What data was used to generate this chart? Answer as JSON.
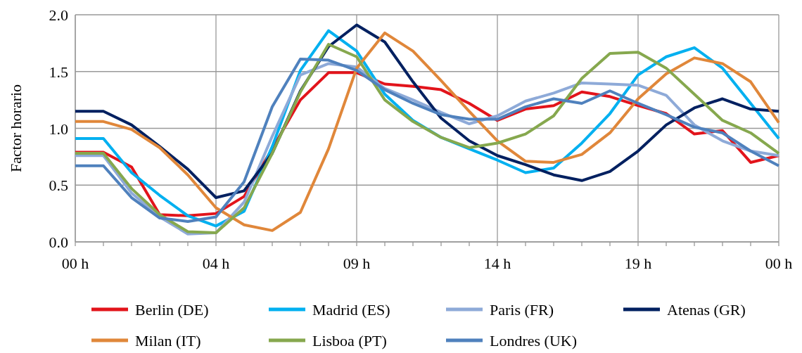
{
  "chart_data": {
    "type": "line",
    "ylabel": "Factor horario",
    "categories": [
      "00 h",
      null,
      null,
      null,
      null,
      "04 h",
      null,
      null,
      null,
      null,
      "09 h",
      null,
      null,
      null,
      null,
      "14 h",
      null,
      null,
      null,
      null,
      "19 h",
      null,
      null,
      null,
      null,
      "00 h"
    ],
    "ylim": [
      0,
      2
    ],
    "yticks": [
      {
        "value": 0,
        "label": "0.0"
      },
      {
        "value": 0.5,
        "label": "0.5"
      },
      {
        "value": 1,
        "label": "1.0"
      },
      {
        "value": 1.5,
        "label": "1.5"
      },
      {
        "value": 2,
        "label": "2.0"
      }
    ],
    "grid": true,
    "legend": "bottom",
    "series": [
      {
        "name": "Berlin (DE)",
        "color": "#e2141b",
        "values": [
          0.79,
          0.79,
          0.66,
          0.24,
          0.23,
          0.25,
          0.4,
          0.82,
          1.25,
          1.49,
          1.49,
          1.39,
          1.37,
          1.34,
          1.22,
          1.07,
          1.17,
          1.2,
          1.32,
          1.28,
          1.2,
          1.13,
          0.95,
          0.98,
          0.7,
          0.76
        ]
      },
      {
        "name": "Madrid (ES)",
        "color": "#00b0f0",
        "values": [
          0.91,
          0.91,
          0.61,
          0.41,
          0.23,
          0.14,
          0.27,
          0.84,
          1.51,
          1.86,
          1.68,
          1.3,
          1.07,
          0.92,
          0.82,
          0.72,
          0.61,
          0.65,
          0.87,
          1.13,
          1.47,
          1.63,
          1.71,
          1.53,
          1.22,
          0.91
        ]
      },
      {
        "name": "Paris (FR)",
        "color": "#8eaad8",
        "values": [
          0.76,
          0.76,
          0.43,
          0.22,
          0.07,
          0.08,
          0.35,
          0.93,
          1.47,
          1.57,
          1.54,
          1.35,
          1.25,
          1.14,
          1.04,
          1.11,
          1.24,
          1.31,
          1.4,
          1.39,
          1.38,
          1.29,
          1.03,
          0.89,
          0.8,
          0.76
        ]
      },
      {
        "name": "Atenas (GR)",
        "color": "#002060",
        "values": [
          1.15,
          1.15,
          1.03,
          0.84,
          0.64,
          0.39,
          0.45,
          0.78,
          1.33,
          1.72,
          1.91,
          1.76,
          1.41,
          1.09,
          0.89,
          0.76,
          0.68,
          0.59,
          0.54,
          0.62,
          0.8,
          1.03,
          1.18,
          1.26,
          1.17,
          1.15
        ]
      },
      {
        "name": "Milan (IT)",
        "color": "#e0873a",
        "values": [
          1.06,
          1.06,
          0.99,
          0.83,
          0.59,
          0.3,
          0.15,
          0.1,
          0.26,
          0.82,
          1.53,
          1.84,
          1.68,
          1.42,
          1.15,
          0.89,
          0.71,
          0.7,
          0.77,
          0.96,
          1.26,
          1.48,
          1.62,
          1.57,
          1.41,
          1.05
        ]
      },
      {
        "name": "Lisboa (PT)",
        "color": "#86a84e",
        "values": [
          0.78,
          0.78,
          0.47,
          0.24,
          0.09,
          0.08,
          0.3,
          0.78,
          1.32,
          1.74,
          1.63,
          1.25,
          1.06,
          0.92,
          0.83,
          0.87,
          0.95,
          1.11,
          1.44,
          1.66,
          1.67,
          1.53,
          1.3,
          1.07,
          0.96,
          0.78
        ]
      },
      {
        "name": "Londres (UK)",
        "color": "#4f81bd",
        "values": [
          0.67,
          0.67,
          0.39,
          0.21,
          0.18,
          0.22,
          0.53,
          1.19,
          1.61,
          1.6,
          1.51,
          1.34,
          1.22,
          1.12,
          1.08,
          1.08,
          1.19,
          1.26,
          1.22,
          1.33,
          1.22,
          1.12,
          1.01,
          0.96,
          0.8,
          0.67
        ]
      }
    ]
  }
}
